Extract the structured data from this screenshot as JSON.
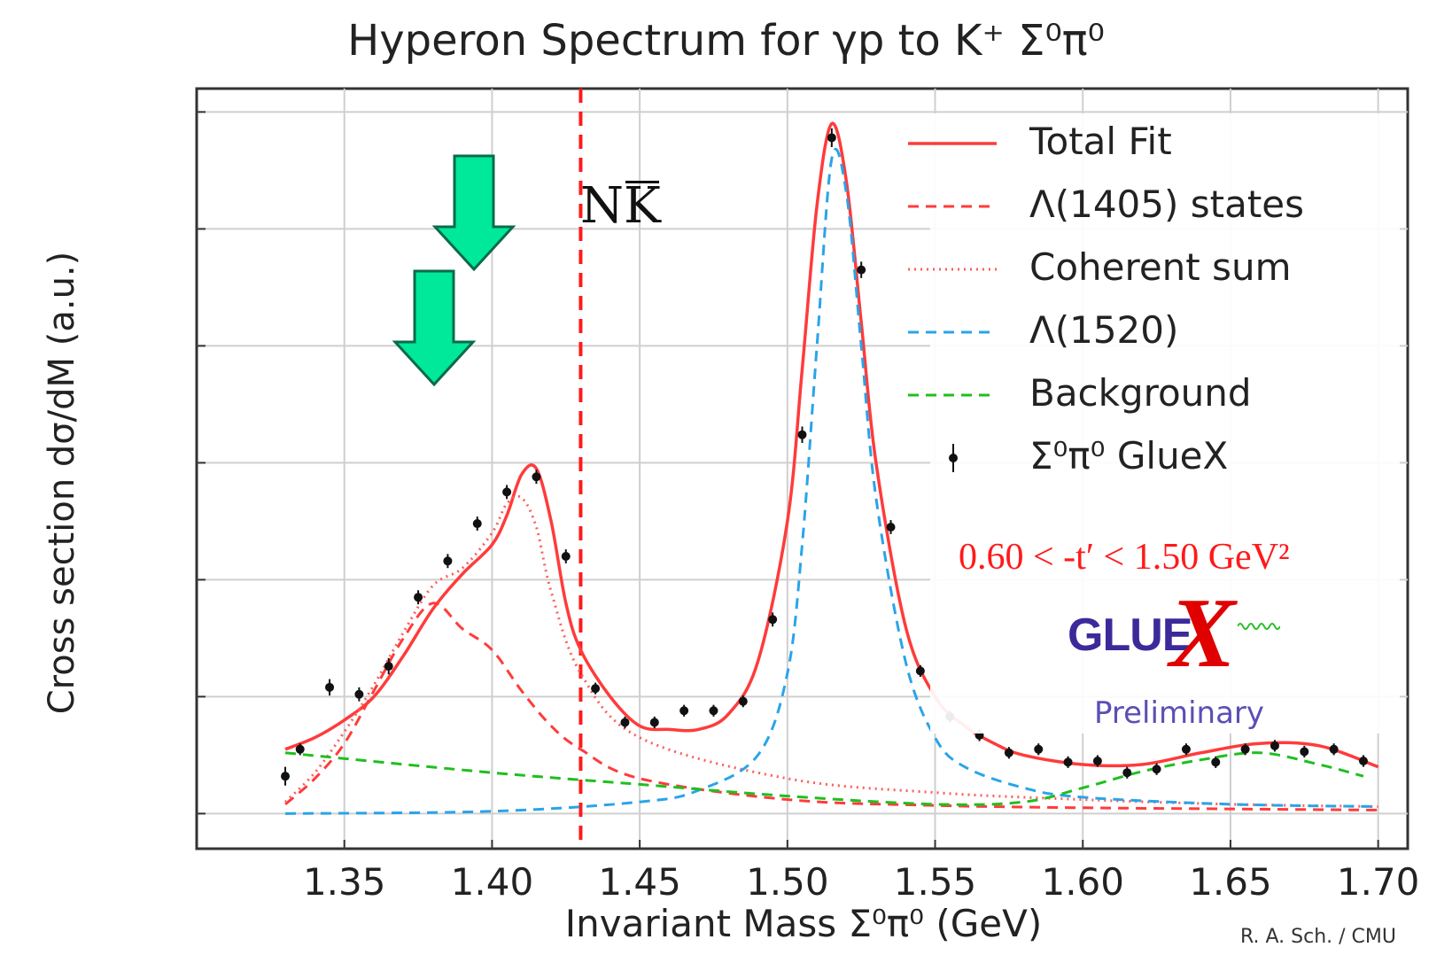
{
  "chart_data": {
    "type": "line",
    "title": "Hyperon Spectrum for γp to K⁺ Σ⁰π⁰",
    "xlabel": "Invariant Mass Σ⁰π⁰ (GeV)",
    "ylabel": "Cross section dσ/dM    (a.u.)",
    "xlim": [
      1.3,
      1.71
    ],
    "ylim": [
      -0.3,
      6.2
    ],
    "x_ticks": [
      1.35,
      1.4,
      1.45,
      1.5,
      1.55,
      1.6,
      1.65,
      1.7
    ],
    "x_tick_labels": [
      "1.35",
      "1.40",
      "1.45",
      "1.50",
      "1.55",
      "1.60",
      "1.65",
      "1.70"
    ],
    "y_gridlines": [
      0,
      1,
      2,
      3,
      4,
      5,
      6
    ],
    "grid": true,
    "legend_position": "top-right",
    "series": [
      {
        "name": "Total Fit",
        "color": "#ff3b3b",
        "style": "solid",
        "x": [
          1.33,
          1.34,
          1.35,
          1.36,
          1.37,
          1.38,
          1.39,
          1.4,
          1.405,
          1.41,
          1.415,
          1.42,
          1.425,
          1.43,
          1.44,
          1.45,
          1.46,
          1.47,
          1.48,
          1.49,
          1.5,
          1.505,
          1.51,
          1.515,
          1.52,
          1.525,
          1.53,
          1.54,
          1.55,
          1.56,
          1.57,
          1.58,
          1.6,
          1.62,
          1.64,
          1.66,
          1.68,
          1.7
        ],
        "y": [
          0.55,
          0.65,
          0.8,
          1.0,
          1.35,
          1.75,
          2.05,
          2.3,
          2.55,
          2.9,
          2.95,
          2.5,
          1.8,
          1.4,
          1.0,
          0.75,
          0.72,
          0.72,
          0.85,
          1.3,
          2.5,
          3.8,
          5.2,
          5.9,
          5.4,
          4.2,
          3.0,
          1.6,
          1.0,
          0.75,
          0.6,
          0.5,
          0.42,
          0.42,
          0.52,
          0.6,
          0.58,
          0.4
        ]
      },
      {
        "name": "Λ(1405) states",
        "color": "#ff3b3b",
        "style": "dashed",
        "x": [
          1.33,
          1.34,
          1.35,
          1.36,
          1.37,
          1.38,
          1.39,
          1.4,
          1.41,
          1.42,
          1.43,
          1.45,
          1.5,
          1.55,
          1.6,
          1.65,
          1.7
        ],
        "y": [
          0.08,
          0.3,
          0.6,
          1.05,
          1.5,
          1.8,
          1.58,
          1.4,
          1.05,
          0.75,
          0.55,
          0.3,
          0.12,
          0.07,
          0.05,
          0.04,
          0.03
        ]
      },
      {
        "name": "Coherent sum",
        "color": "#ff5c5c",
        "style": "dotted",
        "x": [
          1.33,
          1.34,
          1.35,
          1.36,
          1.37,
          1.38,
          1.39,
          1.4,
          1.405,
          1.41,
          1.415,
          1.42,
          1.43,
          1.45,
          1.5,
          1.55,
          1.6,
          1.65,
          1.7
        ],
        "y": [
          0.1,
          0.35,
          0.7,
          1.1,
          1.55,
          1.95,
          2.1,
          2.4,
          2.65,
          2.7,
          2.45,
          1.9,
          1.2,
          0.65,
          0.3,
          0.18,
          0.12,
          0.08,
          0.06
        ]
      },
      {
        "name": "Λ(1520)",
        "color": "#2aa4e8",
        "style": "dashed",
        "x": [
          1.33,
          1.4,
          1.45,
          1.47,
          1.49,
          1.5,
          1.505,
          1.51,
          1.515,
          1.52,
          1.525,
          1.53,
          1.54,
          1.55,
          1.56,
          1.58,
          1.6,
          1.65,
          1.7
        ],
        "y": [
          0.0,
          0.02,
          0.1,
          0.2,
          0.5,
          1.2,
          2.3,
          4.0,
          5.6,
          5.3,
          4.0,
          2.7,
          1.3,
          0.65,
          0.4,
          0.22,
          0.14,
          0.08,
          0.06
        ]
      },
      {
        "name": "Background",
        "color": "#1fbf1f",
        "style": "dashed",
        "x": [
          1.33,
          1.4,
          1.45,
          1.5,
          1.55,
          1.58,
          1.6,
          1.62,
          1.64,
          1.66,
          1.68,
          1.695
        ],
        "y": [
          0.52,
          0.35,
          0.25,
          0.15,
          0.08,
          0.1,
          0.22,
          0.36,
          0.46,
          0.52,
          0.42,
          0.32
        ]
      },
      {
        "name": "Σ⁰π⁰ GlueX",
        "color": "#111111",
        "style": "points",
        "x": [
          1.33,
          1.335,
          1.345,
          1.355,
          1.365,
          1.375,
          1.385,
          1.395,
          1.405,
          1.415,
          1.425,
          1.435,
          1.445,
          1.455,
          1.465,
          1.475,
          1.485,
          1.495,
          1.505,
          1.515,
          1.525,
          1.535,
          1.545,
          1.555,
          1.565,
          1.575,
          1.585,
          1.595,
          1.605,
          1.615,
          1.625,
          1.635,
          1.645,
          1.655,
          1.665,
          1.675,
          1.685,
          1.695
        ],
        "y": [
          0.32,
          0.55,
          1.08,
          1.02,
          1.26,
          1.85,
          2.16,
          2.48,
          2.75,
          2.88,
          2.2,
          1.07,
          0.78,
          0.78,
          0.88,
          0.88,
          0.96,
          1.66,
          3.24,
          5.78,
          4.65,
          2.45,
          1.22,
          0.83,
          0.67,
          0.52,
          0.55,
          0.44,
          0.45,
          0.35,
          0.38,
          0.55,
          0.44,
          0.55,
          0.58,
          0.53,
          0.55,
          0.45
        ],
        "yerr": [
          0.08,
          0.05,
          0.07,
          0.06,
          0.07,
          0.06,
          0.06,
          0.06,
          0.06,
          0.06,
          0.06,
          0.05,
          0.05,
          0.05,
          0.05,
          0.05,
          0.05,
          0.06,
          0.07,
          0.08,
          0.07,
          0.06,
          0.05,
          0.05,
          0.05,
          0.05,
          0.05,
          0.05,
          0.05,
          0.05,
          0.05,
          0.05,
          0.05,
          0.05,
          0.05,
          0.05,
          0.05,
          0.05
        ]
      }
    ],
    "annotations": {
      "threshold_x": 1.43,
      "threshold_label": "NK",
      "threshold_color": "#ff1a1a",
      "arrow_color": "#00e89a",
      "arrows_at_x": [
        1.408,
        1.395
      ],
      "t_cut_label": "0.60 < -t′ < 1.50 GeV²",
      "t_cut_color": "#ff1a1a",
      "logo_glu": "GLUE",
      "logo_x": "X",
      "preliminary": "Preliminary",
      "credit": "R. A. Sch. / CMU"
    }
  }
}
